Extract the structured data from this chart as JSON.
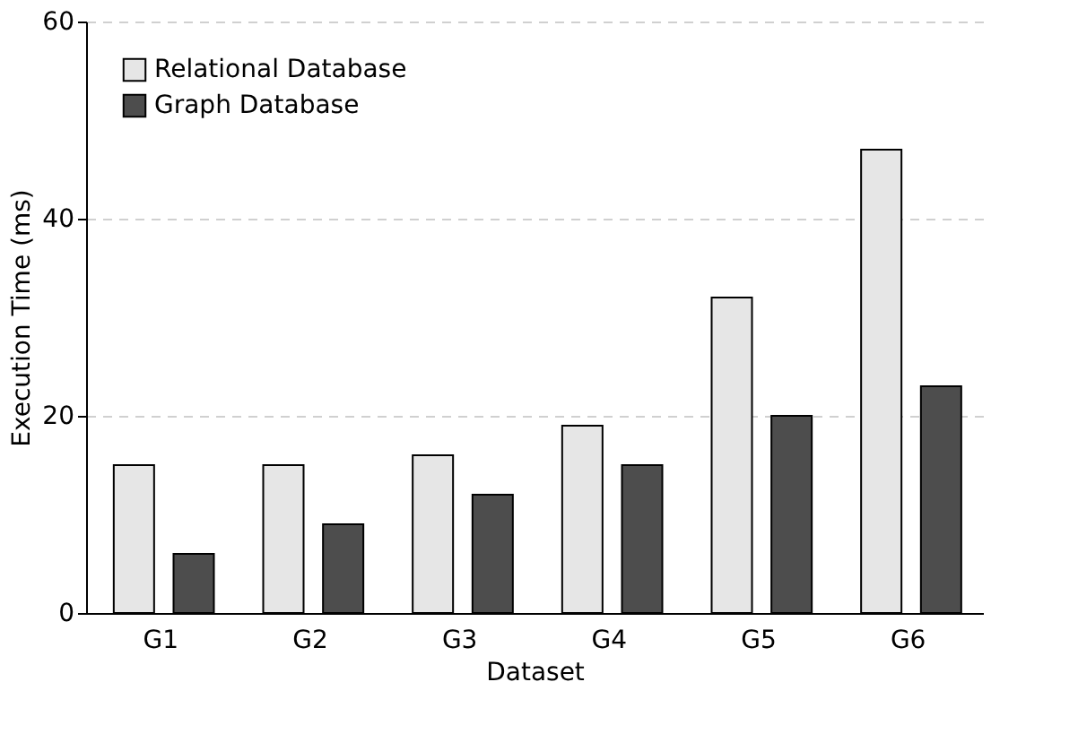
{
  "chart_data": {
    "type": "bar",
    "xlabel": "Dataset",
    "ylabel": "Execution Time (ms)",
    "categories": [
      "G1",
      "G2",
      "G3",
      "G4",
      "G5",
      "G6"
    ],
    "series": [
      {
        "name": "Relational Database",
        "color": "#e6e6e6",
        "values": [
          15,
          15,
          16,
          19,
          32,
          47
        ]
      },
      {
        "name": "Graph Database",
        "color": "#4d4d4d",
        "values": [
          6,
          9,
          12,
          15,
          20,
          23
        ]
      }
    ],
    "ylim": [
      0,
      60
    ],
    "yticks": [
      0,
      20,
      40,
      60
    ],
    "grid": "y",
    "legend": "top left"
  }
}
